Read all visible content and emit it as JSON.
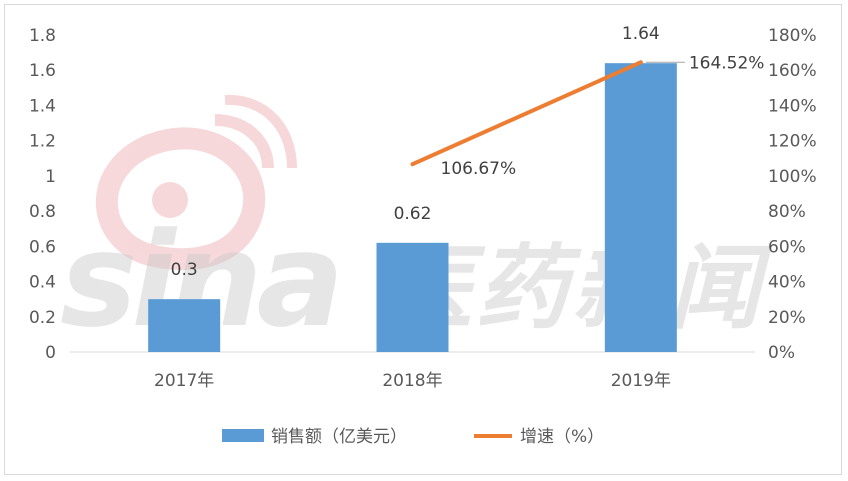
{
  "watermark": {
    "latin": "sina",
    "chinese": "医药新闻",
    "logo": "sina-eye-logo",
    "color": "#e8898e"
  },
  "chart_data": {
    "type": "bar",
    "categories": [
      "2017年",
      "2018年",
      "2019年"
    ],
    "series": [
      {
        "name": "销售额（亿美元）",
        "type": "bar",
        "axis": "left",
        "values": [
          0.3,
          0.62,
          1.64
        ],
        "labels": [
          "0.3",
          "0.62",
          "1.64"
        ],
        "color": "#5b9bd5"
      },
      {
        "name": "增速（%）",
        "type": "line",
        "axis": "right",
        "values": [
          null,
          106.67,
          164.52
        ],
        "labels": [
          "",
          "106.67%",
          "164.52%"
        ],
        "color": "#ed7d31"
      }
    ],
    "y_left": {
      "min": 0,
      "max": 1.8,
      "step": 0.2,
      "tick_labels": [
        "0",
        "0.2",
        "0.4",
        "0.6",
        "0.8",
        "1",
        "1.2",
        "1.4",
        "1.6",
        "1.8"
      ]
    },
    "y_right": {
      "min": 0,
      "max": 180,
      "step": 20,
      "tick_labels": [
        "0%",
        "20%",
        "40%",
        "60%",
        "80%",
        "100%",
        "120%",
        "140%",
        "160%",
        "180%"
      ]
    },
    "grid": false,
    "legend": "bottom"
  }
}
